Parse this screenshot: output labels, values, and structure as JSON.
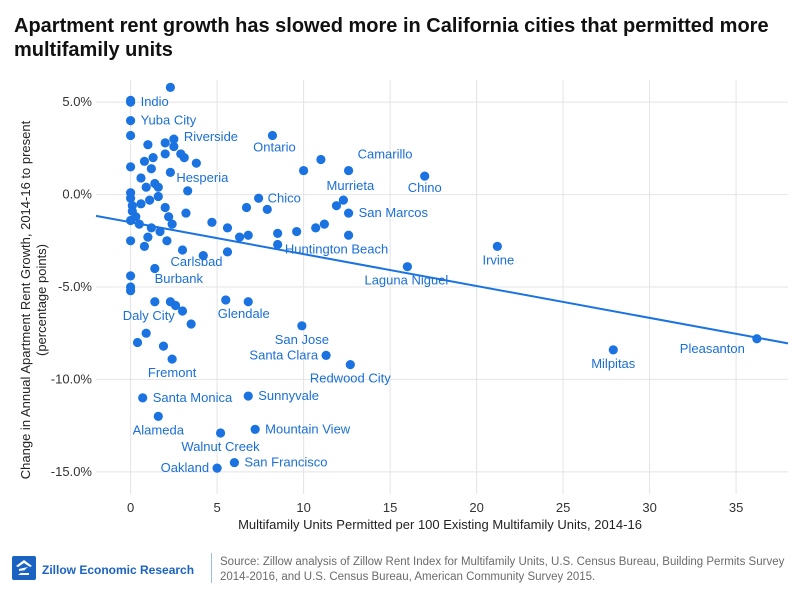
{
  "title": "Apartment rent growth has slowed more in California cities that permitted more multifamily units",
  "footer": {
    "brand": "Zillow Economic Research",
    "source": "Source: Zillow analysis of Zillow Rent Index for Multifamily Units, U.S. Census Bureau, Building Permits Survey 2014-2016, and U.S. Census Bureau, American Community Survey 2015."
  },
  "colors": {
    "points": "#1a73e0",
    "labels": "#1a6fd6",
    "grid": "#e4e4e4",
    "brand": "#1a63c2"
  },
  "chart_data": {
    "type": "scatter",
    "title": "Apartment rent growth has slowed more in California cities that permitted more multifamily units",
    "xlabel": "Multifamily Units Permitted per 100 Existing Multifamily Units, 2014-16",
    "ylabel": "Change in Annual Apartment Rent Growth, 2014-16 to present (percentage points)",
    "xlim": [
      -2,
      38
    ],
    "ylim": [
      -16.2,
      6.2
    ],
    "xticks": [
      {
        "v": 0,
        "label": "0"
      },
      {
        "v": 5,
        "label": "5"
      },
      {
        "v": 10,
        "label": "10"
      },
      {
        "v": 15,
        "label": "15"
      },
      {
        "v": 20,
        "label": "20"
      },
      {
        "v": 25,
        "label": "25"
      },
      {
        "v": 30,
        "label": "30"
      },
      {
        "v": 35,
        "label": "35"
      }
    ],
    "yticks": [
      {
        "v": 5,
        "label": "5.0%"
      },
      {
        "v": 0,
        "label": "0.0%"
      },
      {
        "v": -5,
        "label": "-5.0%"
      },
      {
        "v": -10,
        "label": "-10.0%"
      },
      {
        "v": -15,
        "label": "-15.0%"
      }
    ],
    "grid": true,
    "trendline": {
      "x": [
        -2,
        38
      ],
      "y": [
        -1.15,
        -8.05
      ]
    },
    "points": [
      {
        "x": 0.0,
        "y": 5.0,
        "label": "Indio"
      },
      {
        "x": 0.0,
        "y": 4.0,
        "label": "Yuba City"
      },
      {
        "x": 2.5,
        "y": 3.0,
        "label": "Riverside"
      },
      {
        "x": 8.2,
        "y": 3.2,
        "label": "Ontario"
      },
      {
        "x": 12.6,
        "y": 1.3,
        "label": "Camarillo"
      },
      {
        "x": 3.8,
        "y": 1.7,
        "label": "Hesperia"
      },
      {
        "x": 12.3,
        "y": -0.3,
        "label": "Murrieta"
      },
      {
        "x": 17.0,
        "y": 1.0,
        "label": "Chino"
      },
      {
        "x": 7.4,
        "y": -0.2,
        "label": "Chico"
      },
      {
        "x": 12.6,
        "y": -1.0,
        "label": "San Marcos"
      },
      {
        "x": 3.0,
        "y": -3.0,
        "label": "Carlsbad"
      },
      {
        "x": 12.6,
        "y": -2.2,
        "label": "Huntington Beach"
      },
      {
        "x": 21.2,
        "y": -2.8,
        "label": "Irvine"
      },
      {
        "x": 16.0,
        "y": -3.9,
        "label": "Laguna Niguel"
      },
      {
        "x": 0.0,
        "y": -5.0,
        "label": "Burbank"
      },
      {
        "x": 5.5,
        "y": -5.7,
        "label": "Glendale"
      },
      {
        "x": 1.4,
        "y": -5.8,
        "label": "Daly City"
      },
      {
        "x": 9.9,
        "y": -7.1,
        "label": "San Jose"
      },
      {
        "x": 36.2,
        "y": -7.8,
        "label": "Pleasanton"
      },
      {
        "x": 11.3,
        "y": -8.7,
        "label": "Santa Clara"
      },
      {
        "x": 27.9,
        "y": -8.4,
        "label": "Milpitas"
      },
      {
        "x": 2.4,
        "y": -8.9,
        "label": "Fremont"
      },
      {
        "x": 12.7,
        "y": -9.2,
        "label": "Redwood City"
      },
      {
        "x": 0.7,
        "y": -11.0,
        "label": "Santa Monica"
      },
      {
        "x": 6.8,
        "y": -10.9,
        "label": "Sunnyvale"
      },
      {
        "x": 1.6,
        "y": -12.0,
        "label": "Alameda"
      },
      {
        "x": 5.2,
        "y": -12.9,
        "label": "Walnut Creek"
      },
      {
        "x": 7.2,
        "y": -12.7,
        "label": "Mountain View"
      },
      {
        "x": 5.0,
        "y": -14.8,
        "label": "Oakland"
      },
      {
        "x": 6.0,
        "y": -14.5,
        "label": "San Francisco"
      },
      {
        "x": 2.3,
        "y": 5.8
      },
      {
        "x": 0.0,
        "y": 5.1
      },
      {
        "x": 0.0,
        "y": 3.2
      },
      {
        "x": 1.0,
        "y": 2.7
      },
      {
        "x": 2.0,
        "y": 2.8
      },
      {
        "x": 2.5,
        "y": 2.6
      },
      {
        "x": 2.0,
        "y": 2.2
      },
      {
        "x": 2.9,
        "y": 2.2
      },
      {
        "x": 1.3,
        "y": 2.0
      },
      {
        "x": 3.1,
        "y": 2.0
      },
      {
        "x": 0.8,
        "y": 1.8
      },
      {
        "x": 1.2,
        "y": 1.4
      },
      {
        "x": 0.0,
        "y": 1.5
      },
      {
        "x": 2.3,
        "y": 1.2
      },
      {
        "x": 0.6,
        "y": 0.9
      },
      {
        "x": 1.4,
        "y": 0.6
      },
      {
        "x": 0.9,
        "y": 0.4
      },
      {
        "x": 1.6,
        "y": 0.4
      },
      {
        "x": 3.3,
        "y": 0.2
      },
      {
        "x": 10.0,
        "y": 1.3
      },
      {
        "x": 11.0,
        "y": 1.9
      },
      {
        "x": 0.0,
        "y": 0.1
      },
      {
        "x": 0.0,
        "y": -0.2
      },
      {
        "x": 0.1,
        "y": -0.6
      },
      {
        "x": 0.1,
        "y": -0.9
      },
      {
        "x": 0.3,
        "y": -1.2
      },
      {
        "x": 0.6,
        "y": -0.5
      },
      {
        "x": 1.1,
        "y": -0.3
      },
      {
        "x": 1.6,
        "y": -0.1
      },
      {
        "x": 2.0,
        "y": -0.7
      },
      {
        "x": 2.2,
        "y": -1.2
      },
      {
        "x": 2.4,
        "y": -1.6
      },
      {
        "x": 3.2,
        "y": -1.0
      },
      {
        "x": 0.0,
        "y": -1.4
      },
      {
        "x": 0.5,
        "y": -1.6
      },
      {
        "x": 1.2,
        "y": -1.8
      },
      {
        "x": 1.7,
        "y": -2.0
      },
      {
        "x": 0.0,
        "y": -2.5
      },
      {
        "x": 1.0,
        "y": -2.3
      },
      {
        "x": 0.8,
        "y": -2.8
      },
      {
        "x": 2.1,
        "y": -2.5
      },
      {
        "x": 4.7,
        "y": -1.5
      },
      {
        "x": 5.6,
        "y": -1.8
      },
      {
        "x": 6.3,
        "y": -2.3
      },
      {
        "x": 6.8,
        "y": -2.2
      },
      {
        "x": 8.5,
        "y": -2.1
      },
      {
        "x": 9.6,
        "y": -2.0
      },
      {
        "x": 10.7,
        "y": -1.8
      },
      {
        "x": 11.2,
        "y": -1.6
      },
      {
        "x": 8.5,
        "y": -2.7
      },
      {
        "x": 6.7,
        "y": -0.7
      },
      {
        "x": 7.9,
        "y": -0.8
      },
      {
        "x": 11.9,
        "y": -0.6
      },
      {
        "x": 4.2,
        "y": -3.3
      },
      {
        "x": 5.6,
        "y": -3.1
      },
      {
        "x": 1.4,
        "y": -4.0
      },
      {
        "x": 0.0,
        "y": -4.4
      },
      {
        "x": 0.0,
        "y": -5.2
      },
      {
        "x": 6.8,
        "y": -5.8
      },
      {
        "x": 2.3,
        "y": -5.8
      },
      {
        "x": 2.6,
        "y": -6.0
      },
      {
        "x": 3.0,
        "y": -6.3
      },
      {
        "x": 3.5,
        "y": -7.0
      },
      {
        "x": 0.9,
        "y": -7.5
      },
      {
        "x": 0.4,
        "y": -8.0
      },
      {
        "x": 1.9,
        "y": -8.2
      }
    ]
  }
}
